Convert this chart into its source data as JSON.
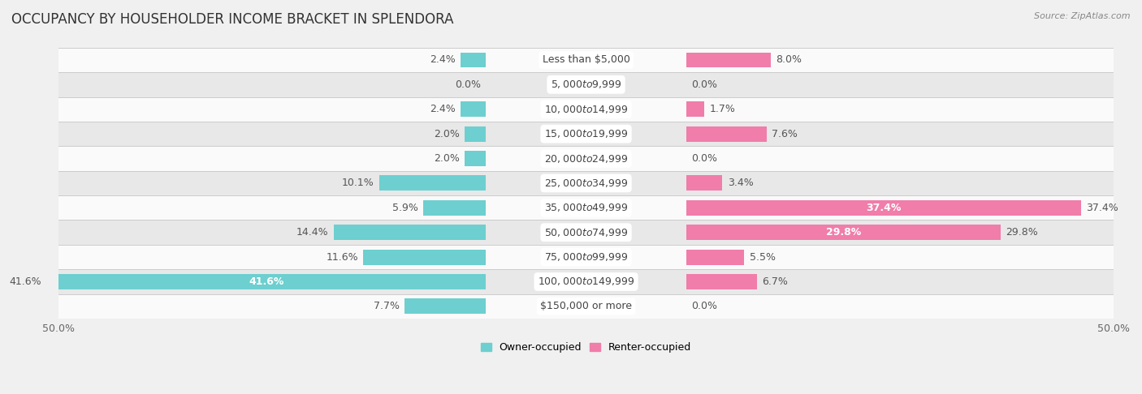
{
  "title": "OCCUPANCY BY HOUSEHOLDER INCOME BRACKET IN SPLENDORA",
  "source": "Source: ZipAtlas.com",
  "categories": [
    "Less than $5,000",
    "$5,000 to $9,999",
    "$10,000 to $14,999",
    "$15,000 to $19,999",
    "$20,000 to $24,999",
    "$25,000 to $34,999",
    "$35,000 to $49,999",
    "$50,000 to $74,999",
    "$75,000 to $99,999",
    "$100,000 to $149,999",
    "$150,000 or more"
  ],
  "owner": [
    2.4,
    0.0,
    2.4,
    2.0,
    2.0,
    10.1,
    5.9,
    14.4,
    11.6,
    41.6,
    7.7
  ],
  "renter": [
    8.0,
    0.0,
    1.7,
    7.6,
    0.0,
    3.4,
    37.4,
    29.8,
    5.5,
    6.7,
    0.0
  ],
  "owner_color": "#6dcfcf",
  "renter_color": "#f07daa",
  "owner_label": "Owner-occupied",
  "renter_label": "Renter-occupied",
  "xlim": 50.0,
  "background_color": "#f0f0f0",
  "row_bg_even": "#fafafa",
  "row_bg_odd": "#e8e8e8",
  "title_fontsize": 12,
  "label_fontsize": 9,
  "category_fontsize": 9,
  "source_fontsize": 8
}
